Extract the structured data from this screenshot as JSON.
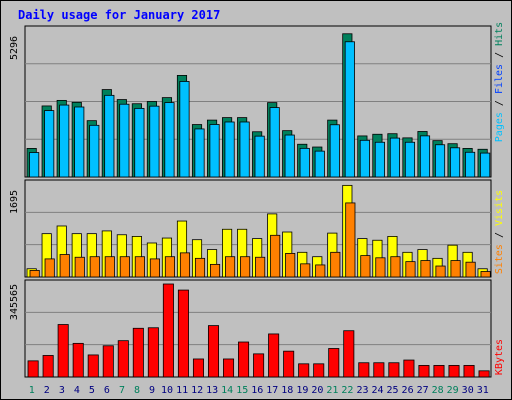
{
  "title": "Daily usage for January 2017",
  "colors": {
    "background": "#c0c0c0",
    "panel": "#c0c0c0",
    "grid": "#808080",
    "hits": "#00805c",
    "files": "#0040ff",
    "pages": "#00c0ff",
    "visits": "#ffff00",
    "sites": "#ff8000",
    "kbytes": "#ff0000",
    "weekend_day": "#00805c",
    "weekday": "#000080"
  },
  "chart_data": [
    {
      "type": "bar",
      "panel": "top",
      "ymax_label": "5296",
      "ymax": 5296,
      "side_label": {
        "pages": "Pages",
        "files": "Files",
        "hits": "Hits",
        "sep": " / "
      },
      "categories": [
        "1",
        "2",
        "3",
        "4",
        "5",
        "6",
        "7",
        "8",
        "9",
        "10",
        "11",
        "12",
        "13",
        "14",
        "15",
        "16",
        "17",
        "18",
        "19",
        "20",
        "21",
        "22",
        "23",
        "24",
        "25",
        "26",
        "27",
        "28",
        "29",
        "30",
        "31"
      ],
      "series": [
        {
          "name": "Hits",
          "values": [
            1030,
            2560,
            2760,
            2690,
            2030,
            3150,
            2790,
            2640,
            2720,
            2860,
            3660,
            1890,
            2050,
            2140,
            2140,
            1630,
            2680,
            1670,
            1180,
            1080,
            2050,
            5160,
            1480,
            1540,
            1560,
            1410,
            1640,
            1310,
            1200,
            1030,
            999
          ]
        },
        {
          "name": "Files",
          "values": [
            990,
            2500,
            2700,
            2630,
            1970,
            3050,
            2730,
            2580,
            2660,
            2790,
            3550,
            1840,
            2000,
            2090,
            2090,
            1580,
            2610,
            1620,
            1140,
            1040,
            1990,
            4980,
            1430,
            1360,
            1510,
            1360,
            1590,
            1270,
            1160,
            999,
            970
          ]
        }
      ]
    },
    {
      "type": "bar",
      "panel": "middle",
      "ymax_label": "1695",
      "ymax": 1695,
      "side_label": {
        "sites": "Sites",
        "visits": "Visits",
        "sep": " / "
      },
      "categories": [
        "1",
        "2",
        "3",
        "4",
        "5",
        "6",
        "7",
        "8",
        "9",
        "10",
        "11",
        "12",
        "13",
        "14",
        "15",
        "16",
        "17",
        "18",
        "19",
        "20",
        "21",
        "22",
        "23",
        "24",
        "25",
        "26",
        "27",
        "28",
        "29",
        "30",
        "31"
      ],
      "series": [
        {
          "name": "Visits",
          "values": [
            150,
            790,
            930,
            790,
            790,
            840,
            770,
            740,
            620,
            710,
            1020,
            680,
            500,
            870,
            870,
            700,
            1150,
            820,
            450,
            370,
            800,
            1670,
            700,
            670,
            740,
            450,
            500,
            340,
            580,
            450,
            150
          ]
        },
        {
          "name": "Sites",
          "values": [
            120,
            330,
            410,
            360,
            370,
            370,
            370,
            370,
            330,
            370,
            440,
            340,
            230,
            370,
            370,
            360,
            760,
            430,
            240,
            220,
            450,
            1350,
            390,
            350,
            370,
            280,
            300,
            200,
            300,
            270,
            100
          ]
        }
      ]
    },
    {
      "type": "bar",
      "panel": "bottom",
      "ymax_label": "345565",
      "ymax": 345565,
      "side_label": {
        "kbytes": "KBytes"
      },
      "categories": [
        "1",
        "2",
        "3",
        "4",
        "5",
        "6",
        "7",
        "8",
        "9",
        "10",
        "11",
        "12",
        "13",
        "14",
        "15",
        "16",
        "17",
        "18",
        "19",
        "20",
        "21",
        "22",
        "23",
        "24",
        "25",
        "26",
        "27",
        "28",
        "29",
        "30",
        "31"
      ],
      "series": [
        {
          "name": "KBytes",
          "values": [
            60000,
            80000,
            195000,
            125000,
            82000,
            116000,
            135000,
            181000,
            183000,
            345565,
            323000,
            67000,
            191000,
            67000,
            130000,
            86000,
            160000,
            96000,
            49000,
            49000,
            106000,
            172000,
            53000,
            53000,
            53000,
            63000,
            43000,
            43000,
            43000,
            43000,
            23000
          ]
        }
      ]
    }
  ],
  "x_labels": [
    "1",
    "2",
    "3",
    "4",
    "5",
    "6",
    "7",
    "8",
    "9",
    "10",
    "11",
    "12",
    "13",
    "14",
    "15",
    "16",
    "17",
    "18",
    "19",
    "20",
    "21",
    "22",
    "23",
    "24",
    "25",
    "26",
    "27",
    "28",
    "29",
    "30",
    "31"
  ],
  "weekend_days": [
    "1",
    "7",
    "8",
    "14",
    "15",
    "21",
    "22",
    "28",
    "29"
  ]
}
